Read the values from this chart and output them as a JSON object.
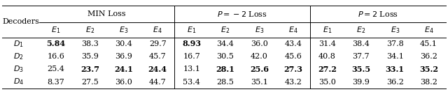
{
  "row_labels": [
    "$D_1$",
    "$D_2$",
    "$D_3$",
    "$D_4$"
  ],
  "data": [
    [
      "\\textbf{5.84}",
      "38.3",
      "30.4",
      "29.7",
      "\\textbf{8.93}",
      "34.4",
      "36.0",
      "43.4",
      "31.4",
      "38.4",
      "37.8",
      "45.1"
    ],
    [
      "16.6",
      "35.9",
      "36.9",
      "45.7",
      "16.7",
      "30.5",
      "42.0",
      "45.6",
      "40.8",
      "37.7",
      "34.1",
      "36.2"
    ],
    [
      "25.4",
      "\\textbf{23.7}",
      "\\textbf{24.1}",
      "\\textbf{24.4}",
      "13.1",
      "\\textbf{28.1}",
      "\\textbf{25.6}",
      "\\textbf{27.3}",
      "\\textbf{27.2}",
      "\\textbf{35.5}",
      "\\textbf{33.1}",
      "\\textbf{35.2}"
    ],
    [
      "8.37",
      "27.5",
      "36.0",
      "44.7",
      "53.4",
      "28.5",
      "35.1",
      "43.2",
      "35.0",
      "39.9",
      "36.2",
      "38.2"
    ]
  ],
  "data_plain": [
    [
      "5.84",
      "38.3",
      "30.4",
      "29.7",
      "8.93",
      "34.4",
      "36.0",
      "43.4",
      "31.4",
      "38.4",
      "37.8",
      "45.1"
    ],
    [
      "16.6",
      "35.9",
      "36.9",
      "45.7",
      "16.7",
      "30.5",
      "42.0",
      "45.6",
      "40.8",
      "37.7",
      "34.1",
      "36.2"
    ],
    [
      "25.4",
      "23.7",
      "24.1",
      "24.4",
      "13.1",
      "28.1",
      "25.6",
      "27.3",
      "27.2",
      "35.5",
      "33.1",
      "35.2"
    ],
    [
      "8.37",
      "27.5",
      "36.0",
      "44.7",
      "53.4",
      "28.5",
      "35.1",
      "43.2",
      "35.0",
      "39.9",
      "36.2",
      "38.2"
    ]
  ],
  "bold": [
    [
      true,
      false,
      false,
      false,
      true,
      false,
      false,
      false,
      false,
      false,
      false,
      false
    ],
    [
      false,
      false,
      false,
      false,
      false,
      false,
      false,
      false,
      false,
      false,
      false,
      false
    ],
    [
      false,
      true,
      true,
      true,
      false,
      true,
      true,
      true,
      true,
      true,
      true,
      true
    ],
    [
      false,
      false,
      false,
      false,
      false,
      false,
      false,
      false,
      false,
      false,
      false,
      false
    ]
  ],
  "group_labels": [
    "MIN Loss",
    "$P = -2$ Loss",
    "$P = 2$ Loss"
  ],
  "e_labels": [
    "$E_1$",
    "$E_2$",
    "$E_3$",
    "$E_4$"
  ],
  "figsize": [
    6.4,
    1.32
  ],
  "dpi": 100,
  "fontsize": 8.0,
  "bg_color": "#ffffff",
  "text_color": "#000000"
}
